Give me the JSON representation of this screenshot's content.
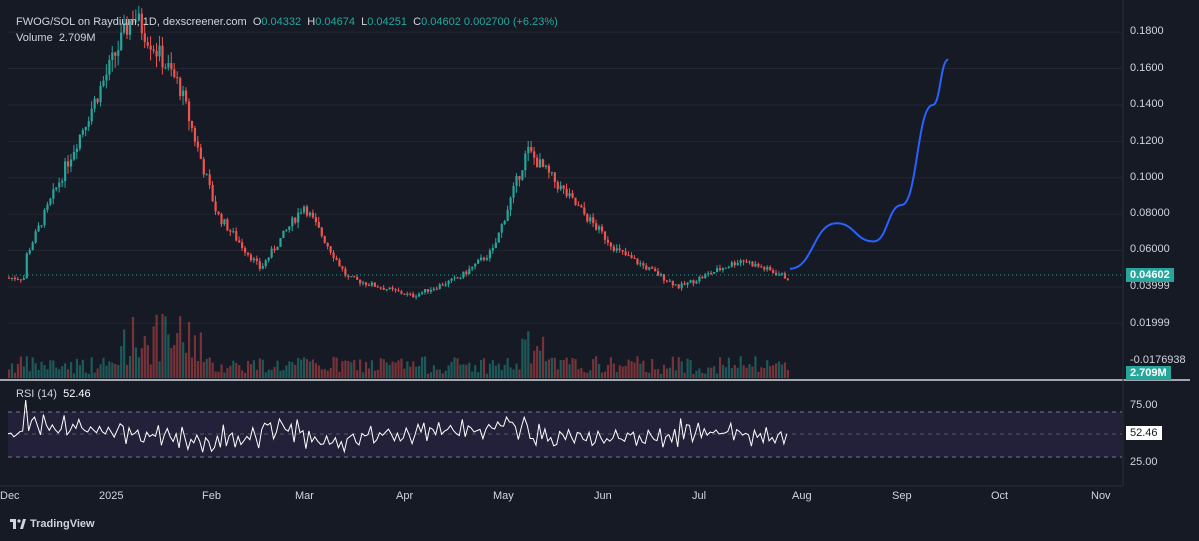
{
  "header": {
    "symbol": "FWOG/SOL on Raydium, 1D, dexscreener.com",
    "o_label": "O",
    "o": "0.04332",
    "h_label": "H",
    "h": "0.04674",
    "l_label": "L",
    "l": "0.04251",
    "c_label": "C",
    "c": "0.04602",
    "change": "0.002700 (+6.23%)",
    "volume_label": "Volume",
    "volume": "2.709M"
  },
  "rsi": {
    "label": "RSI (14)",
    "value": "52.46",
    "upper": "75.00",
    "lower": "25.00"
  },
  "price_axis": {
    "ticks": [
      "0.1800",
      "0.1600",
      "0.1400",
      "0.1200",
      "0.1000",
      "0.08000",
      "0.06000",
      "0.03999",
      "0.01999",
      "-0.0176938"
    ]
  },
  "badges": {
    "last_price": "0.04602",
    "volume": "2.709M",
    "rsi": "52.46"
  },
  "time_axis": {
    "labels": [
      "Dec",
      "2025",
      "Feb",
      "Mar",
      "Apr",
      "May",
      "Jun",
      "Jul",
      "Aug",
      "Sep",
      "Oct",
      "Nov"
    ]
  },
  "branding": {
    "name": "TradingView"
  },
  "colors": {
    "up": "#26a69a",
    "down": "#ef5350",
    "projection": "#2962ff",
    "rsi_band": "#7e57c2",
    "background": "#161a25"
  },
  "chart_data": {
    "type": "candlestick",
    "pair": "FWOG/SOL",
    "interval": "1D",
    "price_range": [
      -0.0176938,
      0.19
    ],
    "rsi_range": [
      0,
      100
    ],
    "last": {
      "open": 0.04332,
      "high": 0.04674,
      "low": 0.04251,
      "close": 0.04602,
      "volume": "2.709M",
      "rsi": 52.46
    },
    "price_path": [
      {
        "t": "2024-12-01",
        "price": 0.055
      },
      {
        "t": "2025-01-05",
        "price": 0.19
      },
      {
        "t": "2025-01-20",
        "price": 0.15
      },
      {
        "t": "2025-02-01",
        "price": 0.08
      },
      {
        "t": "2025-02-15",
        "price": 0.05
      },
      {
        "t": "2025-03-01",
        "price": 0.085
      },
      {
        "t": "2025-03-15",
        "price": 0.045
      },
      {
        "t": "2025-04-05",
        "price": 0.035
      },
      {
        "t": "2025-04-20",
        "price": 0.045
      },
      {
        "t": "2025-05-01",
        "price": 0.06
      },
      {
        "t": "2025-05-12",
        "price": 0.115
      },
      {
        "t": "2025-05-25",
        "price": 0.09
      },
      {
        "t": "2025-06-10",
        "price": 0.06
      },
      {
        "t": "2025-06-30",
        "price": 0.04
      },
      {
        "t": "2025-07-20",
        "price": 0.055
      },
      {
        "t": "2025-08-04",
        "price": 0.045
      }
    ],
    "projection": [
      {
        "t": "2025-08-05",
        "price": 0.05
      },
      {
        "t": "2025-08-20",
        "price": 0.075
      },
      {
        "t": "2025-09-01",
        "price": 0.065
      },
      {
        "t": "2025-09-10",
        "price": 0.085
      },
      {
        "t": "2025-09-20",
        "price": 0.14
      },
      {
        "t": "2025-09-25",
        "price": 0.165
      }
    ]
  }
}
